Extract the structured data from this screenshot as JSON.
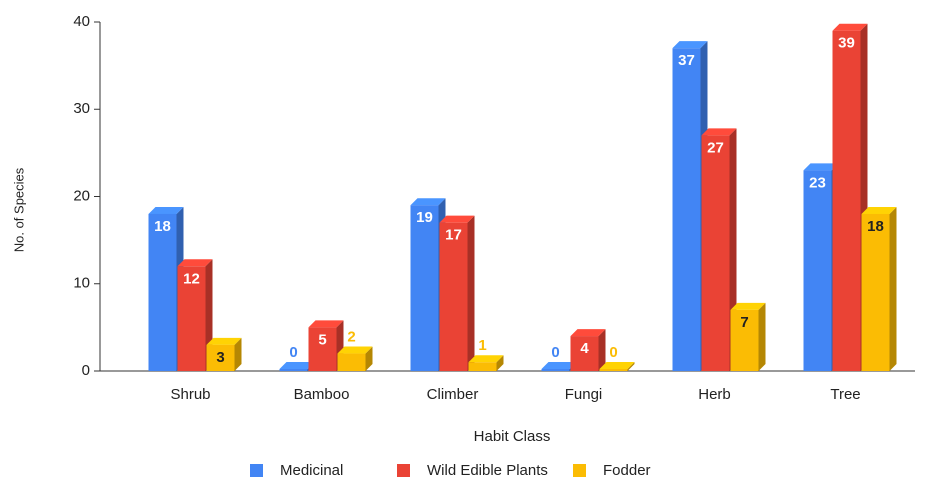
{
  "chart_data": {
    "type": "bar3d",
    "categories": [
      "Shrub",
      "Bamboo",
      "Climber",
      "Fungi",
      "Herb",
      "Tree"
    ],
    "series": [
      {
        "name": "Medicinal",
        "color": "#4285f4",
        "values": [
          18,
          0,
          19,
          0,
          37,
          23
        ]
      },
      {
        "name": "Wild Edible Plants",
        "color": "#ea4335",
        "values": [
          12,
          5,
          17,
          4,
          27,
          39
        ]
      },
      {
        "name": "Fodder",
        "color": "#fbbc04",
        "values": [
          3,
          2,
          1,
          0,
          7,
          18
        ]
      }
    ],
    "ylim": [
      0,
      40
    ],
    "yticks": [
      0,
      10,
      20,
      30,
      40
    ],
    "ylabel": "No. of Species",
    "xlabel": "Habit Class",
    "legend": "bottom"
  }
}
